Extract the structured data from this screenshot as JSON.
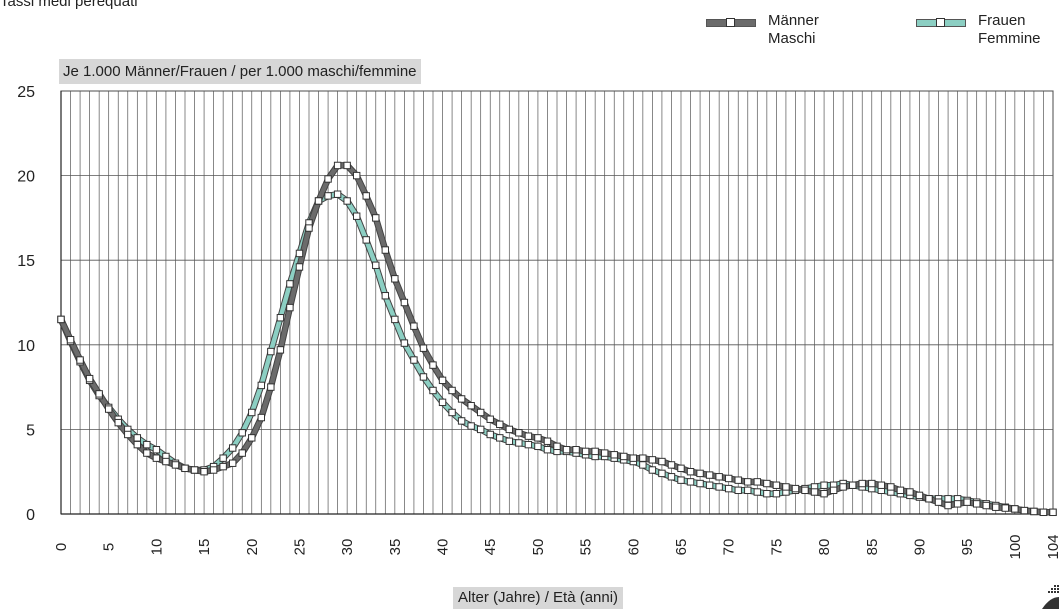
{
  "header": {
    "subtitle_partial": "Tassi medi perequati"
  },
  "chart_data": {
    "type": "line",
    "title": "",
    "ylabel": "Je 1.000 Männer/Frauen / per 1.000 maschi/femmine",
    "xlabel": "Alter (Jahre) / Età (anni)",
    "xlim": [
      0,
      104
    ],
    "ylim": [
      0,
      25
    ],
    "yticks": [
      0,
      5,
      10,
      15,
      20,
      25
    ],
    "xticks": [
      0,
      5,
      10,
      15,
      20,
      25,
      30,
      35,
      40,
      45,
      50,
      55,
      60,
      65,
      70,
      75,
      80,
      85,
      90,
      95,
      100,
      104
    ],
    "grid": true,
    "legend_position": "top-right",
    "series": [
      {
        "name": "Männer / Maschi",
        "line_color": "#6b6b6b",
        "values": [
          11.5,
          10.3,
          9.1,
          8.0,
          7.1,
          6.2,
          5.4,
          4.7,
          4.1,
          3.6,
          3.3,
          3.1,
          2.9,
          2.7,
          2.6,
          2.5,
          2.6,
          2.8,
          3.0,
          3.6,
          4.5,
          5.7,
          7.5,
          9.7,
          12.2,
          14.6,
          16.9,
          18.5,
          19.8,
          20.6,
          20.6,
          20.0,
          18.8,
          17.5,
          15.6,
          13.9,
          12.5,
          11.1,
          9.8,
          8.8,
          7.9,
          7.3,
          6.8,
          6.4,
          6.0,
          5.6,
          5.3,
          5.0,
          4.8,
          4.6,
          4.5,
          4.3,
          4.0,
          3.8,
          3.8,
          3.7,
          3.7,
          3.6,
          3.5,
          3.4,
          3.3,
          3.3,
          3.2,
          3.1,
          2.9,
          2.7,
          2.5,
          2.4,
          2.3,
          2.2,
          2.1,
          2.0,
          1.9,
          1.9,
          1.8,
          1.7,
          1.6,
          1.5,
          1.4,
          1.3,
          1.2,
          1.4,
          1.6,
          1.7,
          1.8,
          1.8,
          1.7,
          1.6,
          1.4,
          1.3,
          1.1,
          0.9,
          0.7,
          0.5,
          0.6,
          0.7,
          0.6,
          0.5,
          0.4,
          0.35,
          0.3,
          0.2,
          0.15,
          0.1,
          0.1
        ]
      },
      {
        "name": "Frauen / Femmine",
        "line_color": "#8ccfc3",
        "values": [
          11.5,
          10.2,
          9.0,
          7.9,
          7.0,
          6.3,
          5.6,
          5.0,
          4.5,
          4.1,
          3.8,
          3.4,
          3.0,
          2.7,
          2.6,
          2.6,
          2.8,
          3.3,
          3.9,
          4.8,
          6.0,
          7.6,
          9.6,
          11.6,
          13.6,
          15.4,
          17.2,
          18.5,
          18.8,
          18.9,
          18.5,
          17.6,
          16.2,
          14.7,
          12.9,
          11.5,
          10.1,
          9.1,
          8.1,
          7.3,
          6.6,
          6.0,
          5.5,
          5.2,
          5.0,
          4.7,
          4.5,
          4.3,
          4.2,
          4.1,
          4.0,
          3.8,
          3.7,
          3.7,
          3.6,
          3.5,
          3.4,
          3.4,
          3.3,
          3.2,
          3.1,
          2.9,
          2.6,
          2.4,
          2.2,
          2.0,
          1.9,
          1.8,
          1.7,
          1.6,
          1.5,
          1.4,
          1.4,
          1.3,
          1.2,
          1.2,
          1.3,
          1.4,
          1.5,
          1.6,
          1.7,
          1.7,
          1.8,
          1.7,
          1.6,
          1.5,
          1.4,
          1.3,
          1.2,
          1.1,
          1.0,
          0.9,
          0.9,
          0.9,
          0.9,
          0.8,
          0.7,
          0.6,
          0.5,
          0.4,
          0.3,
          0.2,
          0.15,
          0.1,
          0.1
        ]
      }
    ],
    "legend": [
      {
        "line1": "Männer",
        "line2": "Maschi",
        "color": "#6b6b6b"
      },
      {
        "line1": "Frauen",
        "line2": "Femmine",
        "color": "#8ccfc3"
      }
    ]
  }
}
